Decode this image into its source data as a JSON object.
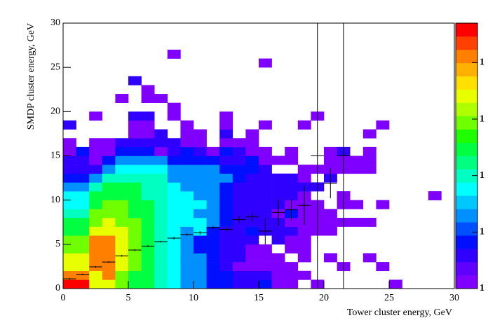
{
  "chart_data": {
    "type": "heatmap",
    "xlabel": "Tower cluster energy, GeV",
    "ylabel": "SMDP cluster energy, GeV",
    "xlim": [
      0,
      30
    ],
    "ylim": [
      0,
      30
    ],
    "xticks": [
      0,
      5,
      10,
      15,
      20,
      25,
      30
    ],
    "yticks": [
      0,
      5,
      10,
      15,
      20,
      25,
      30
    ],
    "zlim": [
      1,
      50000
    ],
    "zscale": "log",
    "zticks": [
      {
        "value": 1,
        "label": "1"
      },
      {
        "value": 10,
        "label": "1"
      },
      {
        "value": 100,
        "label": "1"
      },
      {
        "value": 1000,
        "label": "1"
      },
      {
        "value": 10000,
        "label": "1"
      }
    ],
    "palette": [
      "#8000ff",
      "#6000ff",
      "#3000ff",
      "#0010ff",
      "#0050ff",
      "#0090ff",
      "#00c8ff",
      "#00ffff",
      "#00ffc0",
      "#00ff80",
      "#00ff40",
      "#20ff00",
      "#70ff00",
      "#b0ff00",
      "#e8ff00",
      "#ffe000",
      "#ffb000",
      "#ff8000",
      "#ff4000",
      "#ff0000"
    ],
    "z": [
      [
        30000,
        30000,
        2000,
        2000,
        700,
        300,
        300,
        120,
        50,
        20,
        20,
        8,
        8,
        3,
        3,
        8,
        1,
        1,
        null,
        1,
        null,
        null,
        null,
        null,
        null,
        1,
        null,
        null,
        null,
        null
      ],
      [
        10000,
        10000,
        2000,
        10000,
        700,
        300,
        300,
        120,
        50,
        20,
        20,
        8,
        8,
        3,
        3,
        3,
        1,
        1,
        1,
        null,
        null,
        null,
        null,
        null,
        null,
        null,
        null,
        null,
        null,
        null
      ],
      [
        2000,
        2000,
        10000,
        10000,
        2000,
        700,
        300,
        120,
        50,
        20,
        20,
        8,
        3,
        1,
        1,
        1,
        1,
        1,
        null,
        null,
        null,
        1,
        null,
        null,
        1,
        null,
        null,
        null,
        null,
        null
      ],
      [
        2000,
        2000,
        10000,
        10000,
        2000,
        700,
        300,
        120,
        50,
        20,
        20,
        8,
        3,
        3,
        1,
        1,
        1,
        null,
        1,
        null,
        1,
        null,
        null,
        1,
        null,
        null,
        null,
        null,
        null,
        null
      ],
      [
        700,
        700,
        10000,
        10000,
        2000,
        700,
        300,
        120,
        50,
        20,
        8,
        8,
        3,
        3,
        1,
        1,
        null,
        1,
        1,
        null,
        null,
        null,
        null,
        null,
        null,
        null,
        null,
        null,
        null,
        null
      ],
      [
        700,
        700,
        10000,
        10000,
        2000,
        700,
        300,
        120,
        50,
        20,
        8,
        8,
        3,
        3,
        3,
        null,
        3,
        1,
        1,
        null,
        null,
        null,
        null,
        null,
        null,
        null,
        null,
        null,
        null,
        null
      ],
      [
        300,
        300,
        2000,
        2000,
        2000,
        700,
        300,
        120,
        50,
        20,
        50,
        8,
        3,
        3,
        8,
        3,
        3,
        3,
        1,
        1,
        1,
        null,
        null,
        null,
        null,
        null,
        null,
        null,
        null,
        null
      ],
      [
        300,
        300,
        700,
        2000,
        700,
        700,
        300,
        120,
        50,
        50,
        50,
        20,
        8,
        3,
        3,
        3,
        3,
        1,
        1,
        1,
        1,
        1,
        1,
        1,
        null,
        null,
        null,
        null,
        null,
        null
      ],
      [
        120,
        120,
        700,
        700,
        700,
        300,
        300,
        120,
        50,
        50,
        20,
        20,
        8,
        3,
        3,
        3,
        1,
        8,
        1,
        1,
        1,
        null,
        null,
        null,
        null,
        null,
        null,
        null,
        null,
        null
      ],
      [
        50,
        50,
        300,
        700,
        700,
        300,
        300,
        120,
        50,
        50,
        50,
        20,
        8,
        3,
        3,
        3,
        3,
        1,
        1,
        1,
        null,
        1,
        1,
        null,
        1,
        null,
        null,
        null,
        null,
        null
      ],
      [
        50,
        50,
        300,
        300,
        300,
        300,
        120,
        120,
        50,
        50,
        20,
        20,
        8,
        3,
        3,
        3,
        3,
        3,
        1,
        null,
        null,
        1,
        null,
        null,
        null,
        null,
        null,
        null,
        1,
        null
      ],
      [
        20,
        20,
        120,
        300,
        300,
        300,
        120,
        120,
        50,
        20,
        20,
        20,
        8,
        3,
        3,
        3,
        3,
        3,
        3,
        3,
        null,
        null,
        null,
        null,
        null,
        null,
        null,
        null,
        null,
        null
      ],
      [
        8,
        8,
        20,
        120,
        120,
        120,
        120,
        120,
        20,
        20,
        20,
        20,
        20,
        8,
        3,
        3,
        3,
        3,
        1,
        null,
        3,
        null,
        null,
        null,
        null,
        null,
        null,
        null,
        null,
        null
      ],
      [
        3,
        3,
        3,
        20,
        50,
        50,
        50,
        50,
        20,
        20,
        20,
        20,
        8,
        8,
        8,
        3,
        null,
        null,
        1,
        1,
        1,
        1,
        1,
        1,
        null,
        null,
        null,
        null,
        null,
        null
      ],
      [
        3,
        3,
        1,
        8,
        20,
        20,
        20,
        20,
        8,
        8,
        8,
        8,
        3,
        3,
        8,
        1,
        1,
        1,
        null,
        null,
        1,
        1,
        1,
        1,
        null,
        null,
        null,
        null,
        null,
        null
      ],
      [
        1,
        8,
        1,
        1,
        8,
        8,
        8,
        1,
        3,
        8,
        3,
        1,
        8,
        3,
        1,
        1,
        null,
        1,
        null,
        null,
        1,
        3,
        null,
        1,
        null,
        null,
        null,
        null,
        null,
        null
      ],
      [
        1,
        null,
        1,
        1,
        3,
        3,
        3,
        3,
        3,
        1,
        1,
        null,
        1,
        1,
        1,
        null,
        null,
        null,
        null,
        null,
        null,
        null,
        null,
        null,
        null,
        null,
        null,
        null,
        null,
        null
      ],
      [
        null,
        null,
        null,
        null,
        null,
        1,
        1,
        3,
        null,
        1,
        1,
        null,
        3,
        null,
        1,
        null,
        null,
        null,
        null,
        null,
        null,
        null,
        null,
        1,
        null,
        null,
        null,
        null,
        null,
        null
      ],
      [
        3,
        null,
        null,
        null,
        null,
        1,
        1,
        null,
        null,
        1,
        null,
        null,
        1,
        null,
        null,
        1,
        null,
        null,
        1,
        null,
        null,
        null,
        null,
        null,
        1,
        null,
        null,
        null,
        null,
        null
      ],
      [
        null,
        null,
        1,
        null,
        null,
        3,
        3,
        null,
        1,
        null,
        null,
        null,
        1,
        null,
        null,
        null,
        null,
        null,
        null,
        1,
        null,
        null,
        null,
        null,
        null,
        null,
        null,
        null,
        null,
        null
      ],
      [
        null,
        null,
        null,
        null,
        null,
        null,
        null,
        null,
        1,
        null,
        null,
        null,
        null,
        null,
        null,
        null,
        null,
        null,
        null,
        null,
        null,
        null,
        null,
        null,
        null,
        null,
        null,
        null,
        null,
        null
      ],
      [
        null,
        null,
        null,
        null,
        1,
        null,
        1,
        1,
        null,
        null,
        null,
        null,
        null,
        null,
        null,
        null,
        null,
        null,
        null,
        null,
        null,
        null,
        null,
        null,
        null,
        null,
        null,
        null,
        null,
        null
      ],
      [
        null,
        null,
        null,
        null,
        null,
        null,
        1,
        null,
        null,
        null,
        null,
        null,
        null,
        null,
        null,
        null,
        null,
        null,
        null,
        null,
        null,
        null,
        null,
        null,
        null,
        null,
        null,
        null,
        null,
        null
      ],
      [
        null,
        null,
        null,
        null,
        null,
        3,
        null,
        null,
        null,
        null,
        null,
        null,
        null,
        null,
        null,
        null,
        null,
        null,
        null,
        null,
        null,
        null,
        null,
        null,
        null,
        null,
        null,
        null,
        null,
        null
      ],
      [
        null,
        null,
        null,
        null,
        null,
        null,
        null,
        null,
        null,
        null,
        null,
        null,
        null,
        null,
        null,
        null,
        null,
        null,
        null,
        null,
        null,
        null,
        null,
        null,
        null,
        null,
        null,
        null,
        null,
        null
      ],
      [
        null,
        null,
        null,
        null,
        null,
        null,
        null,
        null,
        null,
        null,
        null,
        null,
        null,
        null,
        null,
        1,
        null,
        null,
        null,
        null,
        null,
        null,
        null,
        null,
        null,
        null,
        null,
        null,
        null,
        null
      ],
      [
        null,
        null,
        null,
        null,
        null,
        null,
        null,
        null,
        1,
        null,
        null,
        null,
        null,
        null,
        null,
        null,
        null,
        null,
        null,
        null,
        null,
        null,
        null,
        null,
        null,
        null,
        null,
        null,
        null,
        null
      ],
      [
        null,
        null,
        null,
        null,
        null,
        null,
        null,
        null,
        null,
        null,
        null,
        null,
        null,
        null,
        null,
        null,
        null,
        null,
        null,
        null,
        null,
        null,
        null,
        null,
        null,
        null,
        null,
        null,
        null,
        null
      ],
      [
        null,
        null,
        null,
        null,
        null,
        null,
        null,
        null,
        null,
        null,
        null,
        null,
        null,
        null,
        null,
        null,
        null,
        null,
        null,
        null,
        null,
        null,
        null,
        null,
        null,
        null,
        null,
        null,
        null,
        null
      ],
      [
        null,
        null,
        null,
        null,
        null,
        null,
        null,
        null,
        null,
        null,
        null,
        null,
        null,
        null,
        null,
        null,
        null,
        null,
        null,
        null,
        null,
        null,
        null,
        null,
        null,
        null,
        null,
        null,
        null,
        null
      ]
    ],
    "profile": {
      "x": [
        0.5,
        1.5,
        2.5,
        3.5,
        4.5,
        5.5,
        6.5,
        7.5,
        8.5,
        9.5,
        10.5,
        11.5,
        12.5,
        13.5,
        14.5,
        15.5,
        16.5,
        17.5,
        18.5,
        19.5,
        20.5,
        21.5
      ],
      "values": [
        1.1,
        1.6,
        2.45,
        3.0,
        3.7,
        4.35,
        4.8,
        5.3,
        5.7,
        6.1,
        6.3,
        6.9,
        6.7,
        7.8,
        8.1,
        6.5,
        8.6,
        8.9,
        9.4,
        15,
        11.9,
        15
      ],
      "errors": [
        0.1,
        0.1,
        0.1,
        0.1,
        0.1,
        0.1,
        0.1,
        0.1,
        0.15,
        0.15,
        0.2,
        0.2,
        0.25,
        0.4,
        0.5,
        1.5,
        1.5,
        1.2,
        2.2,
        15,
        1.7,
        15
      ]
    }
  }
}
